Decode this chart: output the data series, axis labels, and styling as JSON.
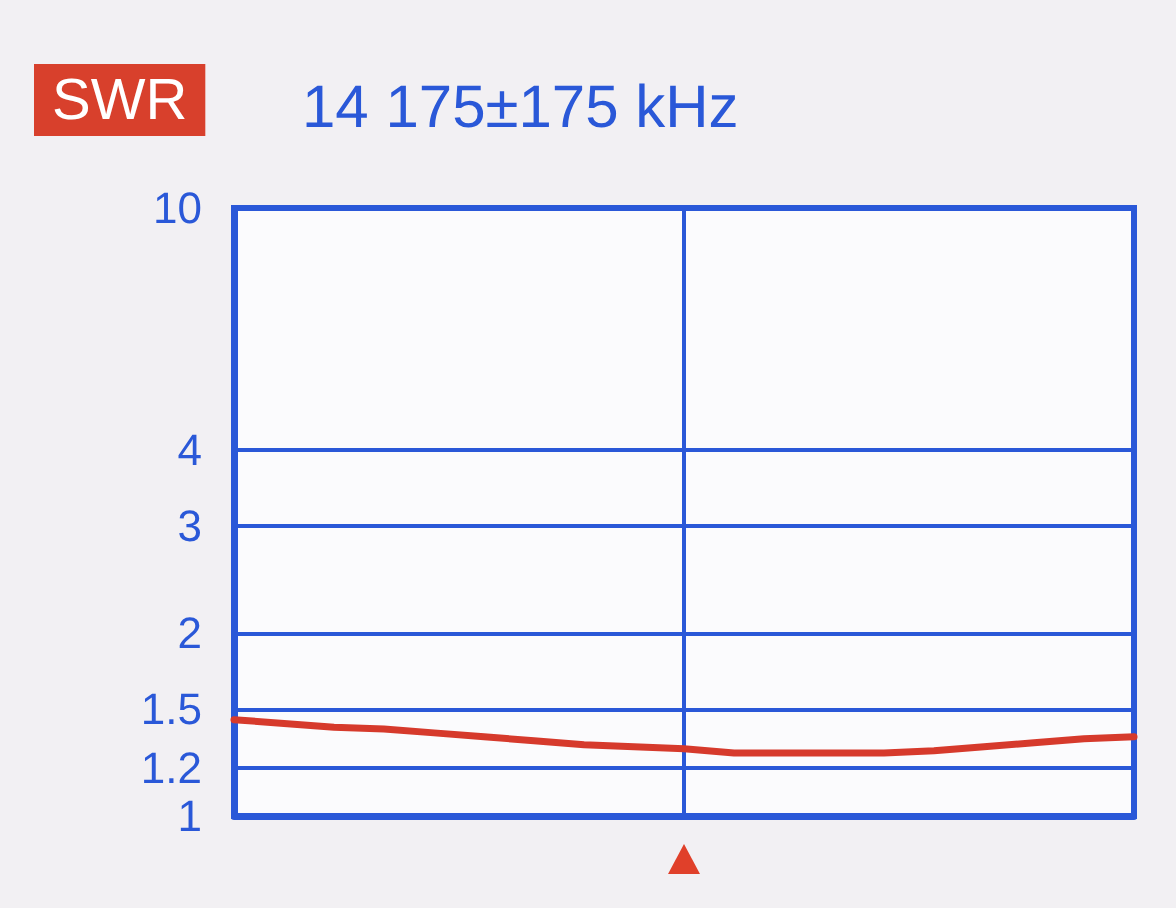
{
  "chart_data": {
    "type": "line",
    "title": "SWR",
    "subtitle": "14 175±175 kHz",
    "categories": [
      null,
      null,
      null,
      null,
      null,
      null,
      null,
      null,
      null,
      null,
      null,
      null,
      null,
      null,
      null,
      null,
      null,
      null,
      null
    ],
    "series": [
      {
        "color": "#d63a2c",
        "values": [
          1.44,
          1.42,
          1.4,
          1.39,
          1.37,
          1.35,
          1.33,
          1.31,
          1.3,
          1.29,
          1.27,
          1.27,
          1.27,
          1.27,
          1.28,
          1.3,
          1.32,
          1.34,
          1.35
        ]
      }
    ],
    "ylim": [
      1,
      10
    ],
    "yticks": [
      1,
      1.2,
      1.5,
      2,
      3,
      4,
      10
    ],
    "log": "y",
    "grid": true,
    "tick_labels": "y",
    "marker": "none"
  }
}
